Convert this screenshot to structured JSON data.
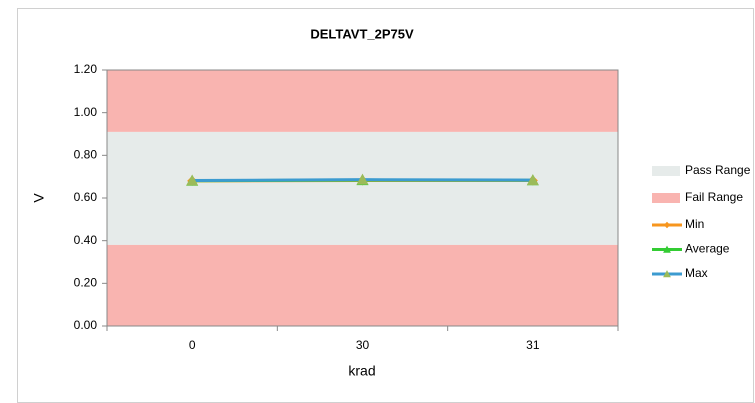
{
  "chart_data": {
    "type": "line",
    "title": "DELTAVT_2P75V",
    "x_label": "krad",
    "y_label": "V",
    "categories": [
      "0",
      "30",
      "31"
    ],
    "ylim": [
      0,
      1.2
    ],
    "yticks": [
      {
        "value": 0,
        "label": "0.00"
      },
      {
        "value": 0.2,
        "label": "0.20"
      },
      {
        "value": 0.4,
        "label": "0.40"
      },
      {
        "value": 0.6,
        "label": "0.60"
      },
      {
        "value": 0.8,
        "label": "0.80"
      },
      {
        "value": 1.0,
        "label": "1.00"
      },
      {
        "value": 1.2,
        "label": "1.20"
      }
    ],
    "bands": [
      {
        "name": "Pass Range",
        "color": "#e6ebea",
        "ranges": [
          [
            0.38,
            0.91
          ]
        ]
      },
      {
        "name": "Fail Range",
        "color": "#f9b4b0",
        "ranges": [
          [
            0,
            0.38
          ],
          [
            0.91,
            1.2
          ]
        ]
      }
    ],
    "series": [
      {
        "name": "Min",
        "color": "#f7961e",
        "marker": "diamond",
        "marker_color": "#f7961e",
        "values": [
          0.68,
          0.682,
          0.682
        ]
      },
      {
        "name": "Average",
        "color": "#33cc33",
        "marker": "triangle",
        "marker_color": "#33cc33",
        "values": [
          0.681,
          0.684,
          0.683
        ]
      },
      {
        "name": "Max",
        "color": "#3c9bd0",
        "marker": "triangle",
        "marker_color": "#9bbb59",
        "values": [
          0.682,
          0.686,
          0.684
        ]
      }
    ]
  }
}
